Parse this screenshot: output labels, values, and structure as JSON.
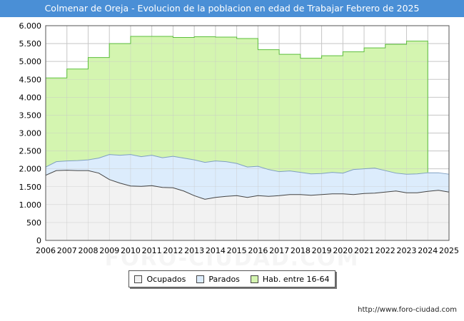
{
  "colors": {
    "title_bg": "#4a8fd6",
    "hab": "#d4f5b0",
    "hab_line": "#5cbf3c",
    "parados": "#dcecfc",
    "parados_line": "#7f9fc2",
    "ocupados": "#f2f2f2",
    "ocupados_line": "#444444",
    "grid": "#c8c8c8"
  },
  "chart_data": {
    "type": "area",
    "title": "Colmenar de Oreja - Evolucion de la poblacion en edad de Trabajar Febrero de 2025",
    "xlabel": "",
    "ylabel": "",
    "xlim": [
      2006,
      2025
    ],
    "ylim": [
      0,
      6000
    ],
    "x_ticks": [
      2006,
      2007,
      2008,
      2009,
      2010,
      2011,
      2012,
      2013,
      2014,
      2015,
      2016,
      2017,
      2018,
      2019,
      2020,
      2021,
      2022,
      2023,
      2024,
      2025
    ],
    "x_tick_labels": [
      "2006",
      "2007",
      "2008",
      "2009",
      "2010",
      "2011",
      "2012",
      "2013",
      "2014",
      "2015",
      "2016",
      "2017",
      "2018",
      "2019",
      "2020",
      "2021",
      "2022",
      "2023",
      "2024",
      "2025"
    ],
    "y_ticks": [
      0,
      500,
      1000,
      1500,
      2000,
      2500,
      3000,
      3500,
      4000,
      4500,
      5000,
      5500,
      6000
    ],
    "y_tick_labels": [
      "0",
      "500",
      "1.000",
      "1.500",
      "2.000",
      "2.500",
      "3.000",
      "3.500",
      "4.000",
      "4.500",
      "5.000",
      "5.500",
      "6.000"
    ],
    "grid": true,
    "legend_position": "bottom",
    "series": [
      {
        "name": "Hab. entre 16-64",
        "type": "step",
        "x": [
          2006,
          2007,
          2008,
          2009,
          2010,
          2011,
          2012,
          2013,
          2014,
          2015,
          2016,
          2017,
          2018,
          2019,
          2020,
          2021,
          2022,
          2023,
          2023.92,
          2024.0
        ],
        "values": [
          4540,
          4790,
          5110,
          5500,
          5700,
          5700,
          5670,
          5690,
          5680,
          5640,
          5330,
          5200,
          5090,
          5160,
          5270,
          5380,
          5480,
          5570,
          5570,
          1900
        ]
      },
      {
        "name": "Parados",
        "type": "line",
        "x": [
          2006,
          2006.5,
          2007,
          2007.5,
          2008,
          2008.5,
          2009,
          2009.5,
          2010,
          2010.5,
          2011,
          2011.5,
          2012,
          2012.5,
          2013,
          2013.5,
          2014,
          2014.5,
          2015,
          2015.5,
          2016,
          2016.5,
          2017,
          2017.5,
          2018,
          2018.5,
          2019,
          2019.5,
          2020,
          2020.5,
          2021,
          2021.5,
          2022,
          2022.5,
          2023,
          2023.5,
          2024,
          2024.5,
          2025
        ],
        "values": [
          2050,
          2200,
          2220,
          2230,
          2250,
          2300,
          2400,
          2380,
          2400,
          2340,
          2380,
          2310,
          2350,
          2300,
          2250,
          2180,
          2220,
          2200,
          2150,
          2050,
          2070,
          1980,
          1920,
          1940,
          1900,
          1860,
          1870,
          1900,
          1880,
          1980,
          2000,
          2020,
          1950,
          1880,
          1850,
          1860,
          1890,
          1890,
          1850
        ]
      },
      {
        "name": "Ocupados",
        "type": "line",
        "x": [
          2006,
          2006.5,
          2007,
          2007.5,
          2008,
          2008.5,
          2009,
          2009.5,
          2010,
          2010.5,
          2011,
          2011.5,
          2012,
          2012.5,
          2013,
          2013.5,
          2014,
          2014.5,
          2015,
          2015.5,
          2016,
          2016.5,
          2017,
          2017.5,
          2018,
          2018.5,
          2019,
          2019.5,
          2020,
          2020.5,
          2021,
          2021.5,
          2022,
          2022.5,
          2023,
          2023.5,
          2024,
          2024.5,
          2025
        ],
        "values": [
          1820,
          1950,
          1960,
          1950,
          1950,
          1880,
          1700,
          1600,
          1520,
          1510,
          1530,
          1480,
          1470,
          1380,
          1250,
          1150,
          1200,
          1230,
          1250,
          1200,
          1250,
          1230,
          1250,
          1280,
          1280,
          1260,
          1280,
          1300,
          1300,
          1280,
          1310,
          1320,
          1350,
          1380,
          1330,
          1330,
          1370,
          1400,
          1350
        ]
      }
    ]
  },
  "legend": {
    "ocupados": "Ocupados",
    "parados": "Parados",
    "hab": "Hab. entre 16-64"
  },
  "source_url": "http://www.foro-ciudad.com",
  "watermark": "FORO-CIUDAD.COM"
}
